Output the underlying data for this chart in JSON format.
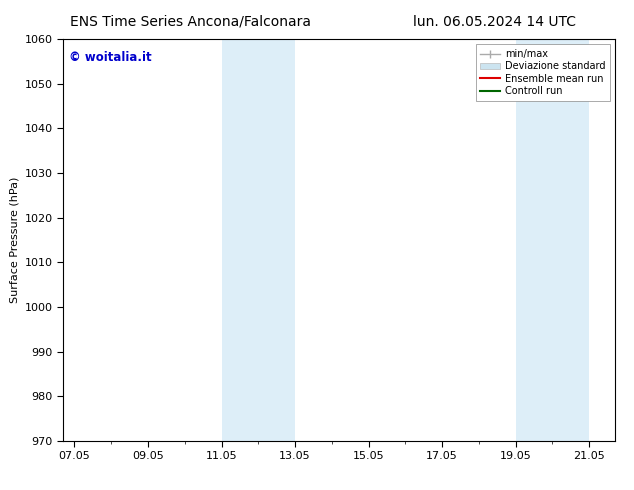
{
  "title_left": "ENS Time Series Ancona/Falconara",
  "title_right": "lun. 06.05.2024 14 UTC",
  "ylabel": "Surface Pressure (hPa)",
  "ylim": [
    970,
    1060
  ],
  "yticks": [
    970,
    980,
    990,
    1000,
    1010,
    1020,
    1030,
    1040,
    1050,
    1060
  ],
  "xtick_labels": [
    "07.05",
    "09.05",
    "11.05",
    "13.05",
    "15.05",
    "17.05",
    "19.05",
    "21.05"
  ],
  "xtick_positions": [
    0,
    2,
    4,
    6,
    8,
    10,
    12,
    14
  ],
  "xlim": [
    -0.3,
    14.7
  ],
  "shaded_regions": [
    {
      "xmin": 4.0,
      "xmax": 6.0,
      "color": "#ddeef8"
    },
    {
      "xmin": 12.0,
      "xmax": 14.0,
      "color": "#ddeef8"
    }
  ],
  "legend_entries": [
    {
      "label": "min/max",
      "type": "errorbar",
      "color": "#aaaaaa"
    },
    {
      "label": "Deviazione standard",
      "type": "bar",
      "color": "#cce0f0"
    },
    {
      "label": "Ensemble mean run",
      "type": "line",
      "color": "#ff0000"
    },
    {
      "label": "Controll run",
      "type": "line",
      "color": "#006600"
    }
  ],
  "watermark_text": "© woitalia.it",
  "watermark_color": "#0000cc",
  "background_color": "#ffffff",
  "title_fontsize": 10,
  "axis_fontsize": 8,
  "tick_fontsize": 8,
  "legend_fontsize": 7
}
